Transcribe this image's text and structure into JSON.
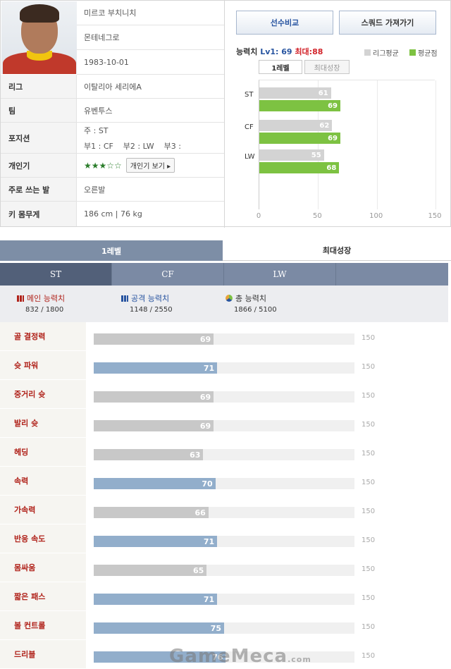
{
  "player": {
    "name": "미르코 부치니치",
    "nation": "몬테네그로",
    "birth": "1983-10-01",
    "rows": [
      {
        "label": "리그",
        "value": "이탈리아 세리에A"
      },
      {
        "label": "팀",
        "value": "유벤투스"
      },
      {
        "label": "포지션",
        "main": "주 : ST",
        "subs": "부1 : CF    부2 : LW    부3 :"
      },
      {
        "label": "개인기",
        "stars": "★★★☆☆",
        "button": "개인기 보기 ▸"
      },
      {
        "label": "주로 쓰는 발",
        "value": "오른발"
      },
      {
        "label": "키 몸무게",
        "value": "186 cm | 76 kg"
      }
    ]
  },
  "actions": {
    "compare": "선수비교",
    "squad": "스쿼드 가져가기"
  },
  "ability": {
    "title": "능력치",
    "lv": "Lv1: 69",
    "max": "최대:88",
    "legend_league": "리그평균",
    "legend_avg": "평균점",
    "tab_level": "1레벨",
    "tab_max": "최대성장",
    "colors": {
      "league": "#d3d3d3",
      "player": "#7dc242"
    }
  },
  "chart_data": {
    "type": "bar",
    "orientation": "horizontal",
    "categories": [
      "ST",
      "CF",
      "LW"
    ],
    "series": [
      {
        "name": "리그평균",
        "values": [
          61,
          62,
          55
        ]
      },
      {
        "name": "평균점",
        "values": [
          69,
          69,
          68
        ]
      }
    ],
    "xlim": [
      0,
      150
    ],
    "xticks": [
      "0",
      "50",
      "100",
      "150"
    ]
  },
  "level_tabs": {
    "on": "1레벨",
    "off": "최대성장"
  },
  "pos_tabs": [
    "ST",
    "CF",
    "LW",
    ""
  ],
  "summary": [
    {
      "label": "메인 능력치",
      "value": "832 / 1800",
      "color": "#b0221a"
    },
    {
      "label": "공격 능력치",
      "value": "1148 / 2550",
      "color": "#2754a0"
    },
    {
      "label": "총 능력치",
      "value": "1866 / 5100",
      "color": "#333333"
    }
  ],
  "stats_max_label": "150",
  "stats": [
    {
      "name": "골 결정력",
      "value": 69,
      "kind": "g"
    },
    {
      "name": "슛 파워",
      "value": 71,
      "kind": "b"
    },
    {
      "name": "중거리 슛",
      "value": 69,
      "kind": "g"
    },
    {
      "name": "발리 슛",
      "value": 69,
      "kind": "g"
    },
    {
      "name": "헤딩",
      "value": 63,
      "kind": "g"
    },
    {
      "name": "속력",
      "value": 70,
      "kind": "b"
    },
    {
      "name": "가속력",
      "value": 66,
      "kind": "g"
    },
    {
      "name": "반응 속도",
      "value": 71,
      "kind": "b"
    },
    {
      "name": "몸싸움",
      "value": 65,
      "kind": "g"
    },
    {
      "name": "짧은 패스",
      "value": 71,
      "kind": "b"
    },
    {
      "name": "볼 컨트롤",
      "value": 75,
      "kind": "b"
    },
    {
      "name": "드리블",
      "value": 76,
      "kind": "b"
    }
  ],
  "watermark": {
    "brand": "GameMeca",
    "suffix": ".com"
  }
}
